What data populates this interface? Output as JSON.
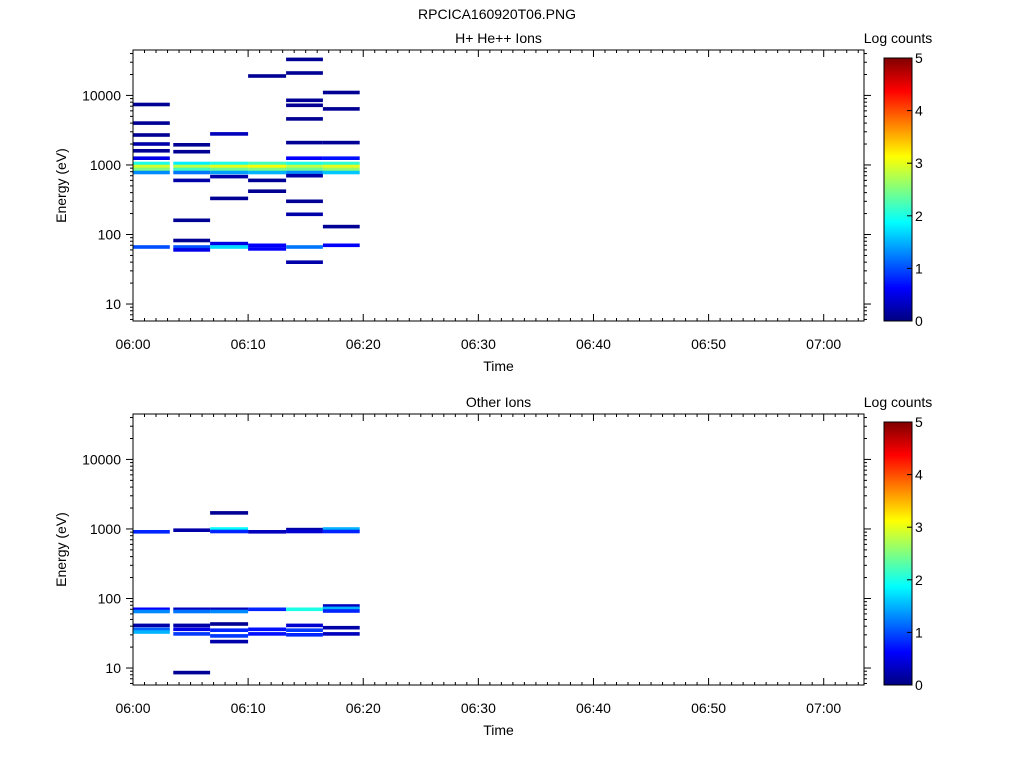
{
  "figure_title": "RPCICA160920T06.PNG",
  "colorscale": {
    "stops": [
      "#000080",
      "#0000ff",
      "#0080ff",
      "#00ffff",
      "#80ff80",
      "#ffff00",
      "#ff8000",
      "#ff0000",
      "#800000"
    ]
  },
  "chart_data": [
    {
      "type": "heatmap",
      "title": "H+ He++ Ions",
      "xlabel": "Time",
      "ylabel": "Energy (eV)",
      "x_ticks": [
        "06:00",
        "06:10",
        "06:20",
        "06:30",
        "06:40",
        "06:50",
        "07:00"
      ],
      "x_range_min": [
        0,
        63.5
      ],
      "y_log": true,
      "y_ticks": [
        "10",
        "100",
        "1000",
        "10000"
      ],
      "y_range_eV": [
        5.7,
        45000
      ],
      "grid": false,
      "colorbar": {
        "label": "Log counts",
        "ticks": [
          "0",
          "1",
          "2",
          "3",
          "4",
          "5"
        ],
        "range": [
          0,
          5
        ]
      },
      "time_bins_min": [
        [
          0,
          3.2
        ],
        [
          3.5,
          6.7
        ],
        [
          6.7,
          10
        ],
        [
          10,
          13.3
        ],
        [
          13.3,
          16.5
        ],
        [
          16.5,
          19.7
        ]
      ],
      "cells": [
        {
          "bin": 0,
          "e": 7400,
          "v": 0.1
        },
        {
          "bin": 0,
          "e": 4000,
          "v": 0.1
        },
        {
          "bin": 0,
          "e": 2700,
          "v": 0.1
        },
        {
          "bin": 0,
          "e": 2000,
          "v": 0.2
        },
        {
          "bin": 0,
          "e": 1600,
          "v": 0.1
        },
        {
          "bin": 0,
          "e": 1250,
          "v": 0.5
        },
        {
          "bin": 0,
          "e": 1050,
          "v": 2.0
        },
        {
          "bin": 0,
          "e": 950,
          "v": 2.9
        },
        {
          "bin": 0,
          "e": 860,
          "v": 2.5
        },
        {
          "bin": 0,
          "e": 780,
          "v": 1.3
        },
        {
          "bin": 0,
          "e": 66,
          "v": 1.0
        },
        {
          "bin": 1,
          "e": 1950,
          "v": 0.1
        },
        {
          "bin": 1,
          "e": 1550,
          "v": 0.1
        },
        {
          "bin": 1,
          "e": 1050,
          "v": 1.8
        },
        {
          "bin": 1,
          "e": 950,
          "v": 2.8
        },
        {
          "bin": 1,
          "e": 860,
          "v": 2.2
        },
        {
          "bin": 1,
          "e": 780,
          "v": 1.2
        },
        {
          "bin": 1,
          "e": 600,
          "v": 0.2
        },
        {
          "bin": 1,
          "e": 160,
          "v": 0.1
        },
        {
          "bin": 1,
          "e": 82,
          "v": 0.1
        },
        {
          "bin": 1,
          "e": 66,
          "v": 1.0
        },
        {
          "bin": 1,
          "e": 60,
          "v": 0.5
        },
        {
          "bin": 2,
          "e": 2800,
          "v": 0.3
        },
        {
          "bin": 2,
          "e": 1050,
          "v": 2.0
        },
        {
          "bin": 2,
          "e": 950,
          "v": 3.0
        },
        {
          "bin": 2,
          "e": 860,
          "v": 2.4
        },
        {
          "bin": 2,
          "e": 780,
          "v": 1.4
        },
        {
          "bin": 2,
          "e": 680,
          "v": 0.2
        },
        {
          "bin": 2,
          "e": 330,
          "v": 0.1
        },
        {
          "bin": 2,
          "e": 74,
          "v": 0.5
        },
        {
          "bin": 2,
          "e": 66,
          "v": 1.7
        },
        {
          "bin": 3,
          "e": 19000,
          "v": 0.1
        },
        {
          "bin": 3,
          "e": 1050,
          "v": 2.2
        },
        {
          "bin": 3,
          "e": 950,
          "v": 3.1
        },
        {
          "bin": 3,
          "e": 860,
          "v": 2.5
        },
        {
          "bin": 3,
          "e": 780,
          "v": 1.5
        },
        {
          "bin": 3,
          "e": 600,
          "v": 0.1
        },
        {
          "bin": 3,
          "e": 420,
          "v": 0.1
        },
        {
          "bin": 3,
          "e": 70,
          "v": 0.6
        },
        {
          "bin": 3,
          "e": 62,
          "v": 0.6
        },
        {
          "bin": 4,
          "e": 33000,
          "v": 0.1
        },
        {
          "bin": 4,
          "e": 21000,
          "v": 0.1
        },
        {
          "bin": 4,
          "e": 8500,
          "v": 0.1
        },
        {
          "bin": 4,
          "e": 7200,
          "v": 0.1
        },
        {
          "bin": 4,
          "e": 4600,
          "v": 0.1
        },
        {
          "bin": 4,
          "e": 2100,
          "v": 0.1
        },
        {
          "bin": 4,
          "e": 1250,
          "v": 0.6
        },
        {
          "bin": 4,
          "e": 1050,
          "v": 2.0
        },
        {
          "bin": 4,
          "e": 950,
          "v": 2.8
        },
        {
          "bin": 4,
          "e": 860,
          "v": 2.4
        },
        {
          "bin": 4,
          "e": 780,
          "v": 1.3
        },
        {
          "bin": 4,
          "e": 700,
          "v": 0.2
        },
        {
          "bin": 4,
          "e": 300,
          "v": 0.1
        },
        {
          "bin": 4,
          "e": 195,
          "v": 0.2
        },
        {
          "bin": 4,
          "e": 66,
          "v": 1.2
        },
        {
          "bin": 4,
          "e": 40,
          "v": 0.2
        },
        {
          "bin": 5,
          "e": 11000,
          "v": 0.1
        },
        {
          "bin": 5,
          "e": 6400,
          "v": 0.1
        },
        {
          "bin": 5,
          "e": 2100,
          "v": 0.1
        },
        {
          "bin": 5,
          "e": 1250,
          "v": 0.7
        },
        {
          "bin": 5,
          "e": 1050,
          "v": 2.1
        },
        {
          "bin": 5,
          "e": 950,
          "v": 3.0
        },
        {
          "bin": 5,
          "e": 860,
          "v": 2.6
        },
        {
          "bin": 5,
          "e": 780,
          "v": 1.6
        },
        {
          "bin": 5,
          "e": 130,
          "v": 0.1
        },
        {
          "bin": 5,
          "e": 70,
          "v": 0.6
        }
      ]
    },
    {
      "type": "heatmap",
      "title": "Other Ions",
      "xlabel": "Time",
      "ylabel": "Energy (eV)",
      "x_ticks": [
        "06:00",
        "06:10",
        "06:20",
        "06:30",
        "06:40",
        "06:50",
        "07:00"
      ],
      "x_range_min": [
        0,
        63.5
      ],
      "y_log": true,
      "y_ticks": [
        "10",
        "100",
        "1000",
        "10000"
      ],
      "y_range_eV": [
        5.7,
        45000
      ],
      "grid": false,
      "colorbar": {
        "label": "Log counts",
        "ticks": [
          "0",
          "1",
          "2",
          "3",
          "4",
          "5"
        ],
        "range": [
          0,
          5
        ]
      },
      "time_bins_min": [
        [
          0,
          3.2
        ],
        [
          3.5,
          6.7
        ],
        [
          6.7,
          10
        ],
        [
          10,
          13.3
        ],
        [
          13.3,
          16.5
        ],
        [
          16.5,
          19.7
        ]
      ],
      "cells": [
        {
          "bin": 0,
          "e": 910,
          "v": 0.8
        },
        {
          "bin": 0,
          "e": 70,
          "v": 0.6
        },
        {
          "bin": 0,
          "e": 65,
          "v": 1.3
        },
        {
          "bin": 0,
          "e": 41,
          "v": 0.2
        },
        {
          "bin": 0,
          "e": 36,
          "v": 1.1
        },
        {
          "bin": 0,
          "e": 33,
          "v": 1.5
        },
        {
          "bin": 1,
          "e": 960,
          "v": 0.2
        },
        {
          "bin": 1,
          "e": 70,
          "v": 0.3
        },
        {
          "bin": 1,
          "e": 65,
          "v": 1.2
        },
        {
          "bin": 1,
          "e": 41,
          "v": 0.2
        },
        {
          "bin": 1,
          "e": 36,
          "v": 0.5
        },
        {
          "bin": 1,
          "e": 31,
          "v": 0.9
        },
        {
          "bin": 1,
          "e": 8.6,
          "v": 0.1
        },
        {
          "bin": 2,
          "e": 1700,
          "v": 0.1
        },
        {
          "bin": 2,
          "e": 1000,
          "v": 1.9
        },
        {
          "bin": 2,
          "e": 920,
          "v": 0.8
        },
        {
          "bin": 2,
          "e": 70,
          "v": 0.3
        },
        {
          "bin": 2,
          "e": 65,
          "v": 1.3
        },
        {
          "bin": 2,
          "e": 43,
          "v": 0.1
        },
        {
          "bin": 2,
          "e": 35,
          "v": 0.8
        },
        {
          "bin": 2,
          "e": 29,
          "v": 0.9
        },
        {
          "bin": 2,
          "e": 24,
          "v": 0.2
        },
        {
          "bin": 3,
          "e": 910,
          "v": 0.3
        },
        {
          "bin": 3,
          "e": 70,
          "v": 0.8
        },
        {
          "bin": 3,
          "e": 36,
          "v": 0.7
        },
        {
          "bin": 3,
          "e": 31,
          "v": 0.7
        },
        {
          "bin": 4,
          "e": 980,
          "v": 0.2
        },
        {
          "bin": 4,
          "e": 920,
          "v": 0.4
        },
        {
          "bin": 4,
          "e": 70,
          "v": 2.0
        },
        {
          "bin": 4,
          "e": 41,
          "v": 0.4
        },
        {
          "bin": 4,
          "e": 35,
          "v": 0.9
        },
        {
          "bin": 4,
          "e": 30,
          "v": 0.8
        },
        {
          "bin": 5,
          "e": 1000,
          "v": 1.5
        },
        {
          "bin": 5,
          "e": 920,
          "v": 0.8
        },
        {
          "bin": 5,
          "e": 78,
          "v": 0.3
        },
        {
          "bin": 5,
          "e": 72,
          "v": 1.5
        },
        {
          "bin": 5,
          "e": 66,
          "v": 0.8
        },
        {
          "bin": 5,
          "e": 38,
          "v": 0.2
        },
        {
          "bin": 5,
          "e": 31,
          "v": 0.3
        }
      ]
    }
  ]
}
